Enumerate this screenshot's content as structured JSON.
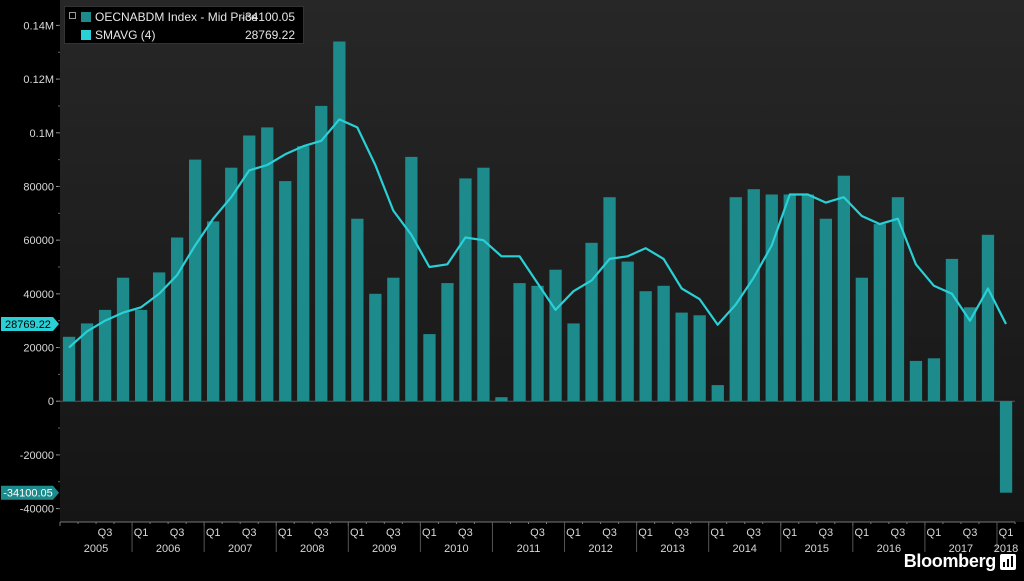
{
  "legend": {
    "items": [
      {
        "name": "OECNABDM Index - Mid Price",
        "value": "-34100.05",
        "color": "#1d8a8c"
      },
      {
        "name": "SMAVG (4)",
        "value": "28769.22",
        "color": "#29d0d6"
      }
    ]
  },
  "brand": {
    "name": "Bloomberg",
    "icon": "bloomberg-terminal-icon"
  },
  "chart_data": {
    "type": "bar",
    "title": "",
    "xlabel": "",
    "ylabel": "",
    "ylim": [
      -45000,
      145000
    ],
    "y_ticks": [
      {
        "value": 140000,
        "label": "0.14M"
      },
      {
        "value": 120000,
        "label": "0.12M"
      },
      {
        "value": 100000,
        "label": "0.1M"
      },
      {
        "value": 80000,
        "label": "80000"
      },
      {
        "value": 60000,
        "label": "60000"
      },
      {
        "value": 40000,
        "label": "40000"
      },
      {
        "value": 20000,
        "label": "20000"
      },
      {
        "value": 0,
        "label": "0"
      },
      {
        "value": -20000,
        "label": "-20000"
      },
      {
        "value": -40000,
        "label": "-40000"
      }
    ],
    "grid": false,
    "categories": [
      "2005 Q1",
      "2005 Q2",
      "2005 Q3",
      "2005 Q4",
      "2006 Q1",
      "2006 Q2",
      "2006 Q3",
      "2006 Q4",
      "2007 Q1",
      "2007 Q2",
      "2007 Q3",
      "2007 Q4",
      "2008 Q1",
      "2008 Q2",
      "2008 Q3",
      "2008 Q4",
      "2009 Q1",
      "2009 Q2",
      "2009 Q3",
      "2009 Q4",
      "2010 Q1",
      "2010 Q2",
      "2010 Q3",
      "2010 Q4",
      "2011 Q1",
      "2011 Q2",
      "2011 Q3",
      "2011 Q4",
      "2012 Q1",
      "2012 Q2",
      "2012 Q3",
      "2012 Q4",
      "2013 Q1",
      "2013 Q2",
      "2013 Q3",
      "2013 Q4",
      "2014 Q1",
      "2014 Q2",
      "2014 Q3",
      "2014 Q4",
      "2015 Q1",
      "2015 Q2",
      "2015 Q3",
      "2015 Q4",
      "2016 Q1",
      "2016 Q2",
      "2016 Q3",
      "2016 Q4",
      "2017 Q1",
      "2017 Q2",
      "2017 Q3",
      "2017 Q4",
      "2018 Q1"
    ],
    "series": [
      {
        "name": "OECNABDM Index - Mid Price",
        "color": "#1d8a8c",
        "values": [
          24000,
          29000,
          34000,
          46000,
          34000,
          48000,
          61000,
          90000,
          67000,
          87000,
          99000,
          102000,
          82000,
          95000,
          110000,
          134000,
          68000,
          40000,
          46000,
          91000,
          25000,
          44000,
          83000,
          87000,
          1500,
          44000,
          43000,
          49000,
          29000,
          59000,
          76000,
          52000,
          41000,
          43000,
          33000,
          32000,
          6000,
          76000,
          79000,
          77000,
          77000,
          77000,
          68000,
          84000,
          46000,
          66000,
          76000,
          15000,
          16000,
          53000,
          35000,
          62000,
          -34100
        ]
      },
      {
        "name": "SMAVG (4)",
        "color": "#29d0d6",
        "values": [
          20000,
          26000,
          30000,
          33000,
          35000,
          40000,
          47000,
          58000,
          68000,
          76000,
          86000,
          88000,
          92000,
          95000,
          97000,
          105000,
          102000,
          88000,
          71000,
          62000,
          50000,
          51000,
          61000,
          60000,
          54000,
          54000,
          44000,
          34000,
          41000,
          45000,
          53000,
          54000,
          57000,
          53000,
          42000,
          38000,
          28500,
          36000,
          46000,
          58000,
          77000,
          77000,
          74000,
          76000,
          69000,
          66000,
          68000,
          51000,
          43000,
          40000,
          30000,
          42000,
          28769.22
        ]
      }
    ],
    "x_quarter_labels": [
      {
        "index": 2,
        "label": "Q3"
      },
      {
        "index": 4,
        "label": "Q1"
      },
      {
        "index": 6,
        "label": "Q3"
      },
      {
        "index": 8,
        "label": "Q1"
      },
      {
        "index": 10,
        "label": "Q3"
      },
      {
        "index": 12,
        "label": "Q1"
      },
      {
        "index": 14,
        "label": "Q3"
      },
      {
        "index": 16,
        "label": "Q1"
      },
      {
        "index": 18,
        "label": "Q3"
      },
      {
        "index": 20,
        "label": "Q1"
      },
      {
        "index": 22,
        "label": "Q3"
      },
      {
        "index": 26,
        "label": "Q3"
      },
      {
        "index": 28,
        "label": "Q1"
      },
      {
        "index": 30,
        "label": "Q3"
      },
      {
        "index": 32,
        "label": "Q1"
      },
      {
        "index": 34,
        "label": "Q3"
      },
      {
        "index": 36,
        "label": "Q1"
      },
      {
        "index": 38,
        "label": "Q3"
      },
      {
        "index": 40,
        "label": "Q1"
      },
      {
        "index": 42,
        "label": "Q3"
      },
      {
        "index": 44,
        "label": "Q1"
      },
      {
        "index": 46,
        "label": "Q3"
      },
      {
        "index": 48,
        "label": "Q1"
      },
      {
        "index": 50,
        "label": "Q3"
      },
      {
        "index": 52,
        "label": "Q1"
      }
    ],
    "x_year_labels": [
      "2005",
      "2006",
      "2007",
      "2008",
      "2009",
      "2010",
      "2011",
      "2012",
      "2013",
      "2014",
      "2015",
      "2016",
      "2017",
      "2018"
    ],
    "value_tags": [
      {
        "series": 1,
        "label": "28769.22",
        "value": 28769.22
      },
      {
        "series": 0,
        "label": "-34100.05",
        "value": -34100.05
      }
    ]
  }
}
